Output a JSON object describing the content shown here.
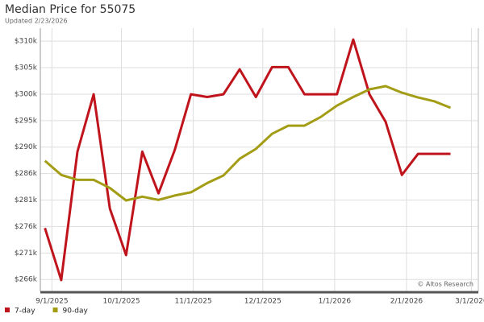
{
  "chart_data": {
    "type": "line",
    "title": "Median Price for 55075",
    "subtitle": "Updated 2/23/2026",
    "watermark": "© Altos Research",
    "x": [
      "2025-08-29",
      "2025-09-05",
      "2025-09-12",
      "2025-09-19",
      "2025-09-26",
      "2025-10-03",
      "2025-10-10",
      "2025-10-17",
      "2025-10-24",
      "2025-10-31",
      "2025-11-07",
      "2025-11-14",
      "2025-11-21",
      "2025-11-28",
      "2025-12-05",
      "2025-12-12",
      "2025-12-19",
      "2025-12-26",
      "2026-01-02",
      "2026-01-09",
      "2026-01-16",
      "2026-01-23",
      "2026-01-30",
      "2026-02-06",
      "2026-02-13",
      "2026-02-20"
    ],
    "series": [
      {
        "name": "7-day",
        "color": "#c0141c",
        "values": [
          275500,
          265900,
          289600,
          300200,
          279100,
          270500,
          289600,
          281900,
          289900,
          300200,
          299700,
          300200,
          304800,
          299700,
          305200,
          305200,
          300200,
          300200,
          300200,
          310300,
          300200,
          295100,
          285300,
          289200,
          289200,
          289200
        ]
      },
      {
        "name": "90-day",
        "color": "#a39d16",
        "values": [
          287900,
          285300,
          284400,
          284400,
          282900,
          280600,
          281300,
          280700,
          281500,
          282100,
          283800,
          285200,
          288300,
          290100,
          292900,
          294400,
          294400,
          296000,
          298100,
          299700,
          301100,
          301700,
          300500,
          299600,
          298900,
          297700
        ]
      }
    ],
    "xlim": [
      "2025-08-27",
      "2026-03-04"
    ],
    "xticks": [
      {
        "value": "2025-09-01",
        "label": "9/1/2025"
      },
      {
        "value": "2025-10-01",
        "label": "10/1/2025"
      },
      {
        "value": "2025-11-01",
        "label": "11/1/2025"
      },
      {
        "value": "2025-12-01",
        "label": "12/1/2025"
      },
      {
        "value": "2026-01-01",
        "label": "1/1/2026"
      },
      {
        "value": "2026-02-01",
        "label": "2/1/2026"
      },
      {
        "value": "2026-03-01",
        "label": "3/1/2026"
      }
    ],
    "ylim": [
      263800,
      312400
    ],
    "yticks": [
      {
        "value": 266000,
        "label": "$266k"
      },
      {
        "value": 270889,
        "label": "$271k"
      },
      {
        "value": 275778,
        "label": "$276k"
      },
      {
        "value": 280667,
        "label": "$281k"
      },
      {
        "value": 285556,
        "label": "$286k"
      },
      {
        "value": 290444,
        "label": "$290k"
      },
      {
        "value": 295333,
        "label": "$295k"
      },
      {
        "value": 300222,
        "label": "$300k"
      },
      {
        "value": 305111,
        "label": "$305k"
      },
      {
        "value": 310000,
        "label": "$310k"
      }
    ],
    "grid": true,
    "legend": "bottom-left"
  }
}
